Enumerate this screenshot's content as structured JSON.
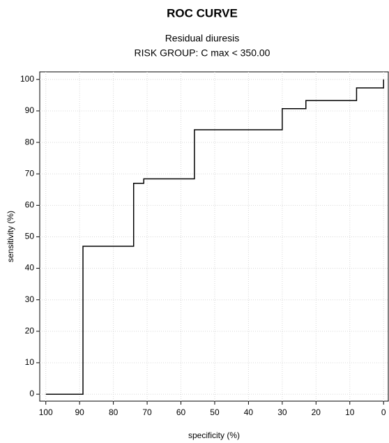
{
  "chart_data": {
    "type": "line",
    "title": "ROC CURVE",
    "subtitle": [
      "Residual diuresis",
      "RISK GROUP: C max < 350.00"
    ],
    "x_label": "specificity (%)",
    "y_label": "sensitivity (%)",
    "x": [
      100,
      89,
      89,
      74,
      74,
      71,
      71,
      56,
      56,
      30,
      30,
      23,
      23,
      8,
      8,
      0,
      0
    ],
    "series": [
      {
        "color": "#000000",
        "values": [
          0,
          0,
          47,
          47,
          67,
          67,
          68.4,
          68.4,
          84,
          84,
          90.7,
          90.7,
          93.3,
          93.3,
          97.3,
          97.3,
          100
        ]
      }
    ],
    "xlim": [
      101.8,
      -1.4
    ],
    "ylim": [
      -2.2,
      102.4
    ],
    "xticks": [
      100,
      90,
      80,
      70,
      60,
      50,
      40,
      30,
      20,
      10,
      0
    ],
    "yticks": [
      0,
      10,
      20,
      30,
      40,
      50,
      60,
      70,
      80,
      90,
      100
    ],
    "grid": true
  }
}
